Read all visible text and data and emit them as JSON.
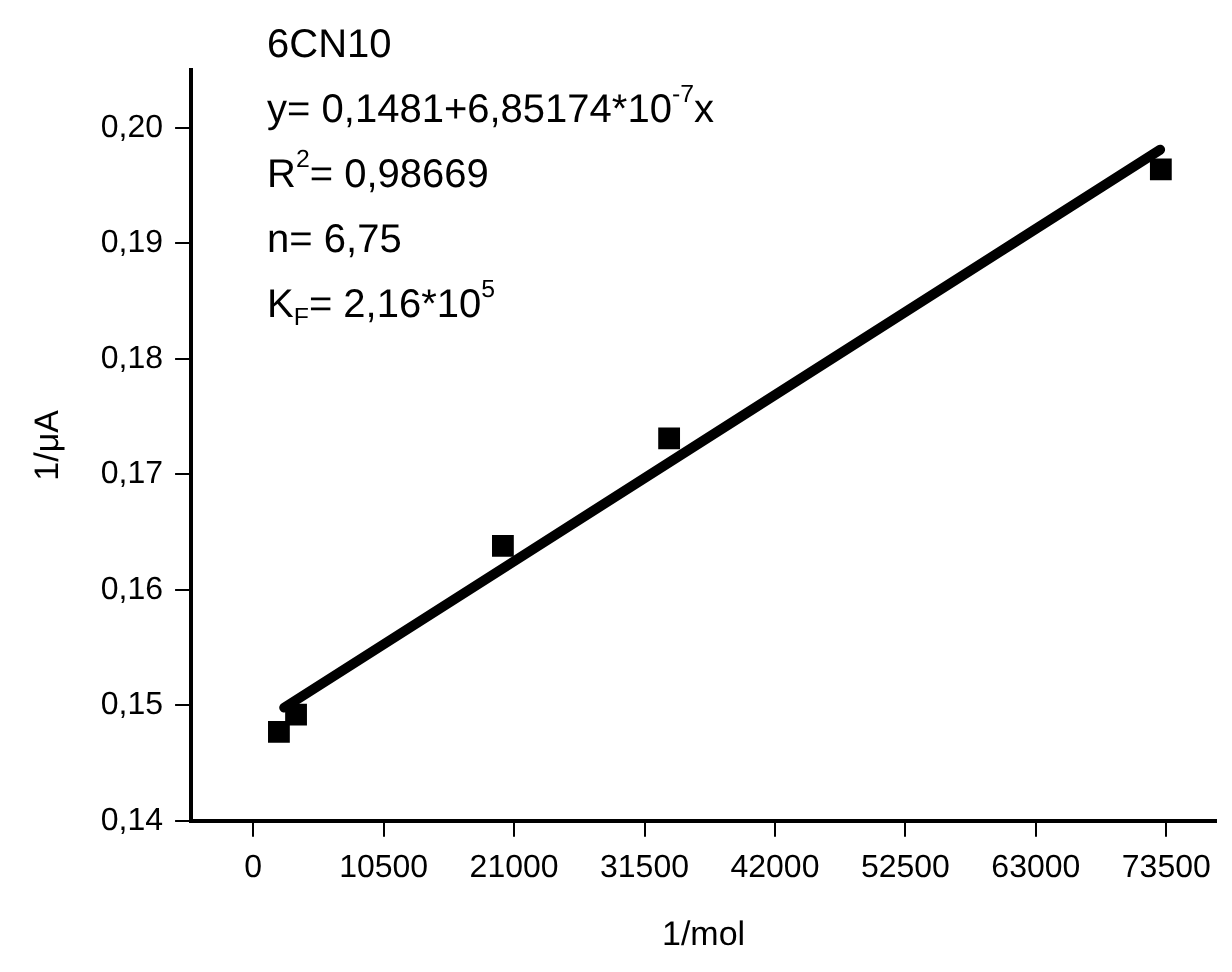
{
  "chart_data": {
    "type": "scatter",
    "xlabel": "1/mol",
    "ylabel": "1/μA",
    "annotations": [
      "6CN10",
      "y= 0,1481+6,85174*10$^{-7}$x",
      "R$^{2}$= 0,98669",
      "n= 6,75",
      "K$_{F}$= 2,16*10$^{5}$"
    ],
    "xlim": [
      -5000,
      77500
    ],
    "xticks": [
      0,
      10500,
      21000,
      31500,
      42000,
      52500,
      63000,
      73500
    ],
    "ylim": [
      0.14,
      0.205
    ],
    "yticks": [
      {
        "value": 0.14,
        "label": "0,14"
      },
      {
        "value": 0.15,
        "label": "0,15"
      },
      {
        "value": 0.16,
        "label": "0,16"
      },
      {
        "value": 0.17,
        "label": "0,17"
      },
      {
        "value": 0.18,
        "label": "0,18"
      },
      {
        "value": 0.19,
        "label": "0,19"
      },
      {
        "value": 0.2,
        "label": "0,20"
      }
    ],
    "grid": false,
    "legend": false,
    "marker": "square",
    "series": [
      {
        "color": "#000000",
        "x": [
          2070,
          3450,
          20100,
          33480,
          73060
        ],
        "values": [
          0.1477,
          0.1492,
          0.1638,
          0.1731,
          0.1964
        ]
      },
      {
        "type": "line",
        "color": "#000000",
        "marker": "none",
        "line_style": "solid",
        "x": [
          2500,
          73000
        ],
        "values": [
          0.1498,
          0.1981
        ]
      }
    ]
  }
}
